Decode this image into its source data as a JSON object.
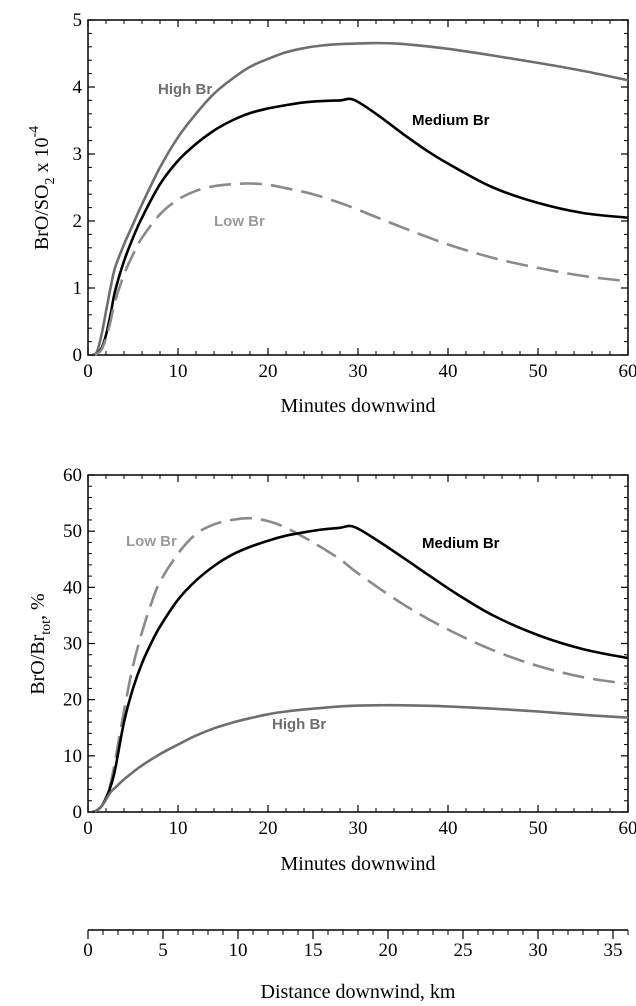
{
  "chart_data": [
    {
      "type": "line",
      "xlabel": "Minutes downwind",
      "ylabel_main": "BrO/SO",
      "ylabel_sub": "2",
      "ylabel_mult": " x 10",
      "ylabel_exp": "-4",
      "xlim": [
        0,
        60
      ],
      "ylim": [
        0,
        5
      ],
      "xticks": [
        "0",
        "10",
        "20",
        "30",
        "40",
        "50",
        "60"
      ],
      "yticks": [
        "0",
        "1",
        "2",
        "3",
        "4",
        "5"
      ],
      "series": [
        {
          "name": "High Br",
          "color": "#6e6e6e",
          "dash": "solid",
          "x": [
            0.5,
            1,
            1.5,
            2,
            2.5,
            3,
            4,
            5,
            6,
            8,
            10,
            12,
            14,
            16,
            18,
            20,
            22,
            24,
            26,
            28,
            30,
            32,
            34,
            36,
            40,
            45,
            50,
            55,
            60
          ],
          "y": [
            0,
            0.05,
            0.3,
            0.65,
            1.0,
            1.3,
            1.65,
            1.95,
            2.25,
            2.8,
            3.25,
            3.6,
            3.9,
            4.12,
            4.3,
            4.42,
            4.52,
            4.58,
            4.62,
            4.64,
            4.65,
            4.655,
            4.65,
            4.63,
            4.57,
            4.47,
            4.36,
            4.24,
            4.1
          ]
        },
        {
          "name": "Medium Br",
          "color": "#000000",
          "dash": "solid",
          "x": [
            0.5,
            1,
            1.5,
            2,
            2.5,
            3,
            4,
            5,
            6,
            8,
            10,
            12,
            14,
            16,
            18,
            20,
            22,
            24,
            26,
            28,
            29.5,
            32,
            35,
            38,
            41,
            45,
            50,
            55,
            60
          ],
          "y": [
            0,
            0.02,
            0.1,
            0.3,
            0.6,
            0.95,
            1.4,
            1.75,
            2.05,
            2.55,
            2.9,
            3.15,
            3.35,
            3.5,
            3.61,
            3.68,
            3.73,
            3.77,
            3.79,
            3.8,
            3.81,
            3.6,
            3.3,
            3.02,
            2.78,
            2.5,
            2.27,
            2.12,
            2.05
          ]
        },
        {
          "name": "Low Br",
          "color": "#8a8a8a",
          "dash": "dashed",
          "x": [
            0.5,
            1,
            1.5,
            2,
            2.5,
            3,
            4,
            5,
            6,
            8,
            10,
            12,
            14,
            16,
            18,
            20,
            22,
            25,
            28,
            30,
            32,
            35,
            40,
            45,
            50,
            55,
            60
          ],
          "y": [
            0,
            0.02,
            0.08,
            0.25,
            0.5,
            0.8,
            1.2,
            1.5,
            1.75,
            2.1,
            2.32,
            2.45,
            2.52,
            2.55,
            2.56,
            2.54,
            2.49,
            2.4,
            2.27,
            2.17,
            2.06,
            1.9,
            1.65,
            1.45,
            1.3,
            1.18,
            1.1
          ]
        }
      ]
    },
    {
      "type": "line",
      "xlabel": "Minutes downwind",
      "ylabel_main": "BrO/Br",
      "ylabel_sub": "tot",
      "ylabel_tail": ", %",
      "xlim": [
        0,
        60
      ],
      "ylim": [
        0,
        60
      ],
      "xticks": [
        "0",
        "10",
        "20",
        "30",
        "40",
        "50",
        "60"
      ],
      "yticks": [
        "0",
        "10",
        "20",
        "30",
        "40",
        "50",
        "60"
      ],
      "series": [
        {
          "name": "Low Br",
          "color": "#8a8a8a",
          "dash": "dashed",
          "x": [
            0.5,
            1,
            1.5,
            2,
            2.5,
            3,
            4,
            5,
            6,
            7,
            8,
            10,
            12,
            14,
            16,
            18,
            20,
            22,
            25,
            28,
            30,
            35,
            40,
            45,
            50,
            55,
            60
          ],
          "y": [
            0,
            0.3,
            1.0,
            2.5,
            5,
            9,
            18,
            26,
            32,
            37,
            41,
            46,
            49.5,
            51.2,
            52.0,
            52.3,
            51.8,
            50.6,
            48.0,
            45.0,
            42.5,
            37.0,
            32.5,
            28.8,
            26.0,
            24.0,
            22.8
          ]
        },
        {
          "name": "Medium Br",
          "color": "#000000",
          "dash": "solid",
          "x": [
            0.5,
            1,
            1.5,
            2,
            2.5,
            3,
            4,
            5,
            6,
            7,
            8,
            10,
            12,
            14,
            16,
            18,
            20,
            22,
            24,
            26,
            28,
            29.5,
            32,
            35,
            38,
            41,
            45,
            50,
            55,
            60
          ],
          "y": [
            0,
            0.3,
            1.0,
            2.5,
            4.5,
            7.5,
            16,
            22,
            26.5,
            30,
            33,
            37.8,
            41.2,
            43.8,
            45.8,
            47.2,
            48.3,
            49.2,
            49.8,
            50.3,
            50.6,
            50.8,
            48.5,
            45.3,
            42.0,
            38.8,
            35.0,
            31.5,
            29.0,
            27.4
          ]
        },
        {
          "name": "High Br",
          "color": "#6e6e6e",
          "dash": "solid",
          "x": [
            0.5,
            1,
            1.5,
            2,
            2.5,
            3,
            4,
            5,
            6,
            8,
            10,
            12,
            14,
            16,
            18,
            20,
            22,
            25,
            28,
            30,
            32,
            35,
            40,
            45,
            50,
            55,
            60
          ],
          "y": [
            0,
            0.3,
            1.0,
            2.2,
            3.5,
            4.3,
            5.8,
            7.1,
            8.3,
            10.3,
            12.0,
            13.6,
            14.9,
            15.9,
            16.7,
            17.4,
            17.9,
            18.4,
            18.8,
            18.95,
            19.0,
            19.0,
            18.8,
            18.4,
            17.9,
            17.3,
            16.8
          ]
        }
      ],
      "second_axis": {
        "label": "Distance downwind, km",
        "ticks": [
          "0",
          "5",
          "10",
          "15",
          "20",
          "25",
          "30",
          "35"
        ],
        "max_minutes": 60,
        "km_per_minute": 0.6
      }
    }
  ]
}
